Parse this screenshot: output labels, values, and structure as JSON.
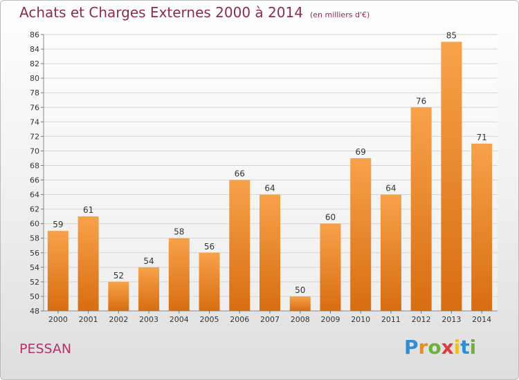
{
  "chart_data": {
    "type": "bar",
    "title": "Achats et Charges Externes 2000 à 2014",
    "subtitle": "(en milliers d'€)",
    "categories": [
      "2000",
      "2001",
      "2002",
      "2003",
      "2004",
      "2005",
      "2006",
      "2007",
      "2008",
      "2009",
      "2010",
      "2011",
      "2012",
      "2013",
      "2014"
    ],
    "values": [
      59,
      61,
      52,
      54,
      58,
      56,
      66,
      64,
      50,
      60,
      69,
      64,
      76,
      85,
      71
    ],
    "ylim": [
      48,
      86
    ],
    "yticks": [
      48,
      50,
      52,
      54,
      56,
      58,
      60,
      62,
      64,
      66,
      68,
      70,
      72,
      74,
      76,
      78,
      80,
      82,
      84,
      86
    ],
    "grid": true,
    "bar_color": "#f0932e"
  },
  "footer": {
    "commune": "PESSAN",
    "logo": {
      "letters": [
        "P",
        "r",
        "o",
        "x",
        "i",
        "t",
        "i"
      ],
      "colors": [
        "#2e8fd8",
        "#f08a1c",
        "#6ab23a",
        "#e23a3a",
        "#f0c020",
        "#2e8fd8",
        "#6ab23a"
      ]
    }
  }
}
